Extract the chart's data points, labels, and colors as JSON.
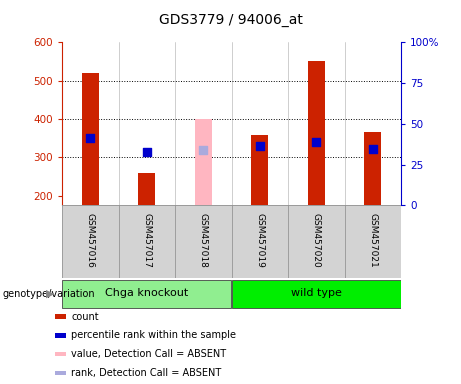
{
  "title": "GDS3779 / 94006_at",
  "samples": [
    "GSM457016",
    "GSM457017",
    "GSM457018",
    "GSM457019",
    "GSM457020",
    "GSM457021"
  ],
  "count_values": [
    519,
    260,
    null,
    358,
    551,
    365
  ],
  "count_absent": [
    null,
    null,
    400,
    null,
    null,
    null
  ],
  "percentile_values": [
    350,
    313,
    null,
    330,
    340,
    323
  ],
  "percentile_absent": [
    null,
    null,
    320,
    null,
    null,
    null
  ],
  "y_min": 175,
  "y_max": 600,
  "y_ticks": [
    200,
    300,
    400,
    500,
    600
  ],
  "y2_ticks": [
    0,
    25,
    50,
    75,
    100
  ],
  "groups": [
    {
      "label": "Chga knockout",
      "start": 0,
      "end": 3,
      "color": "#90EE90"
    },
    {
      "label": "wild type",
      "start": 3,
      "end": 6,
      "color": "#00EE00"
    }
  ],
  "group_label": "genotype/variation",
  "bar_color": "#CC2200",
  "bar_absent_color": "#FFB6C1",
  "dot_color": "#0000CC",
  "dot_absent_color": "#AAAADD",
  "axis_color_left": "#CC2200",
  "axis_color_right": "#0000CC",
  "sample_bg": "#D3D3D3",
  "legend_items": [
    {
      "color": "#CC2200",
      "label": "count"
    },
    {
      "color": "#0000CC",
      "label": "percentile rank within the sample"
    },
    {
      "color": "#FFB6C1",
      "label": "value, Detection Call = ABSENT"
    },
    {
      "color": "#AAAADD",
      "label": "rank, Detection Call = ABSENT"
    }
  ]
}
